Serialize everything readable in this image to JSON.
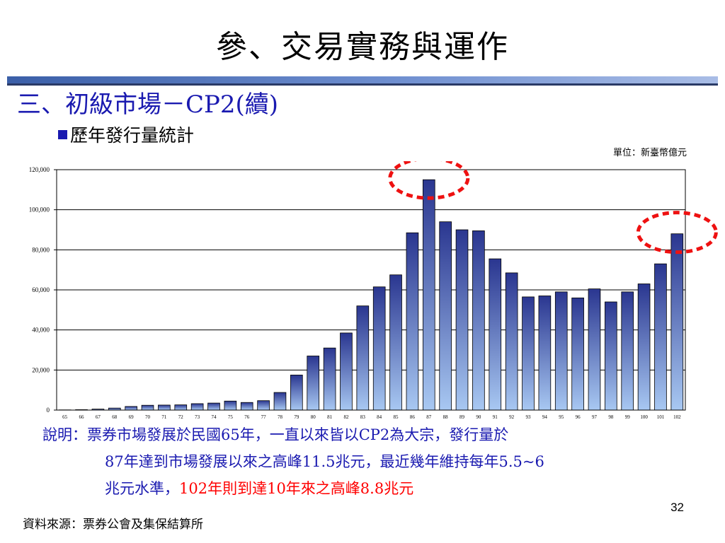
{
  "slide": {
    "title": "參、交易實務與運作",
    "section_heading": "三、初級市場－CP2(續)",
    "bullet": "歷年發行量統計",
    "page_number": "32",
    "source": "資料來源：票券公會及集保結算所"
  },
  "note": {
    "line1": "說明：票券市場發展於民國65年，一直以來皆以CP2為大宗，發行量於",
    "line2": "87年達到市場發展以來之高峰11.5兆元，最近幾年維持每年5.5~6",
    "line3_plain": "兆元水準，",
    "line3_red": "102年則到達10年來之高峰8.8兆元"
  },
  "colors": {
    "heading_blue": "#1a1ab0",
    "bar_top": "#2a3690",
    "bar_bottom": "#a8c8f2",
    "highlight_red": "#ee1111"
  },
  "chart_data": {
    "type": "bar",
    "unit_note": "單位：新臺幣億元",
    "title": "",
    "xlabel": "",
    "ylabel": "",
    "ylim": [
      0,
      120000
    ],
    "yticks": [
      0,
      20000,
      40000,
      60000,
      80000,
      100000,
      120000
    ],
    "ytick_labels": [
      "0",
      "20,000",
      "40,000",
      "60,000",
      "80,000",
      "100,000",
      "120,000"
    ],
    "grid": true,
    "legend": "none",
    "categories": [
      "65",
      "66",
      "67",
      "68",
      "69",
      "70",
      "71",
      "72",
      "73",
      "74",
      "75",
      "76",
      "77",
      "78",
      "79",
      "80",
      "81",
      "82",
      "83",
      "84",
      "85",
      "86",
      "87",
      "88",
      "89",
      "90",
      "91",
      "92",
      "93",
      "94",
      "95",
      "96",
      "97",
      "98",
      "99",
      "100",
      "101",
      "102"
    ],
    "values": [
      100,
      200,
      500,
      1000,
      1800,
      2400,
      2500,
      2600,
      3200,
      3500,
      4500,
      3800,
      4700,
      8800,
      17500,
      27000,
      31000,
      38500,
      52000,
      61500,
      67500,
      88500,
      115000,
      94000,
      90000,
      89500,
      75500,
      68500,
      56500,
      57000,
      59000,
      56000,
      60500,
      54000,
      59000,
      63000,
      73000,
      88000
    ],
    "highlight_categories": [
      "87",
      "102"
    ]
  }
}
